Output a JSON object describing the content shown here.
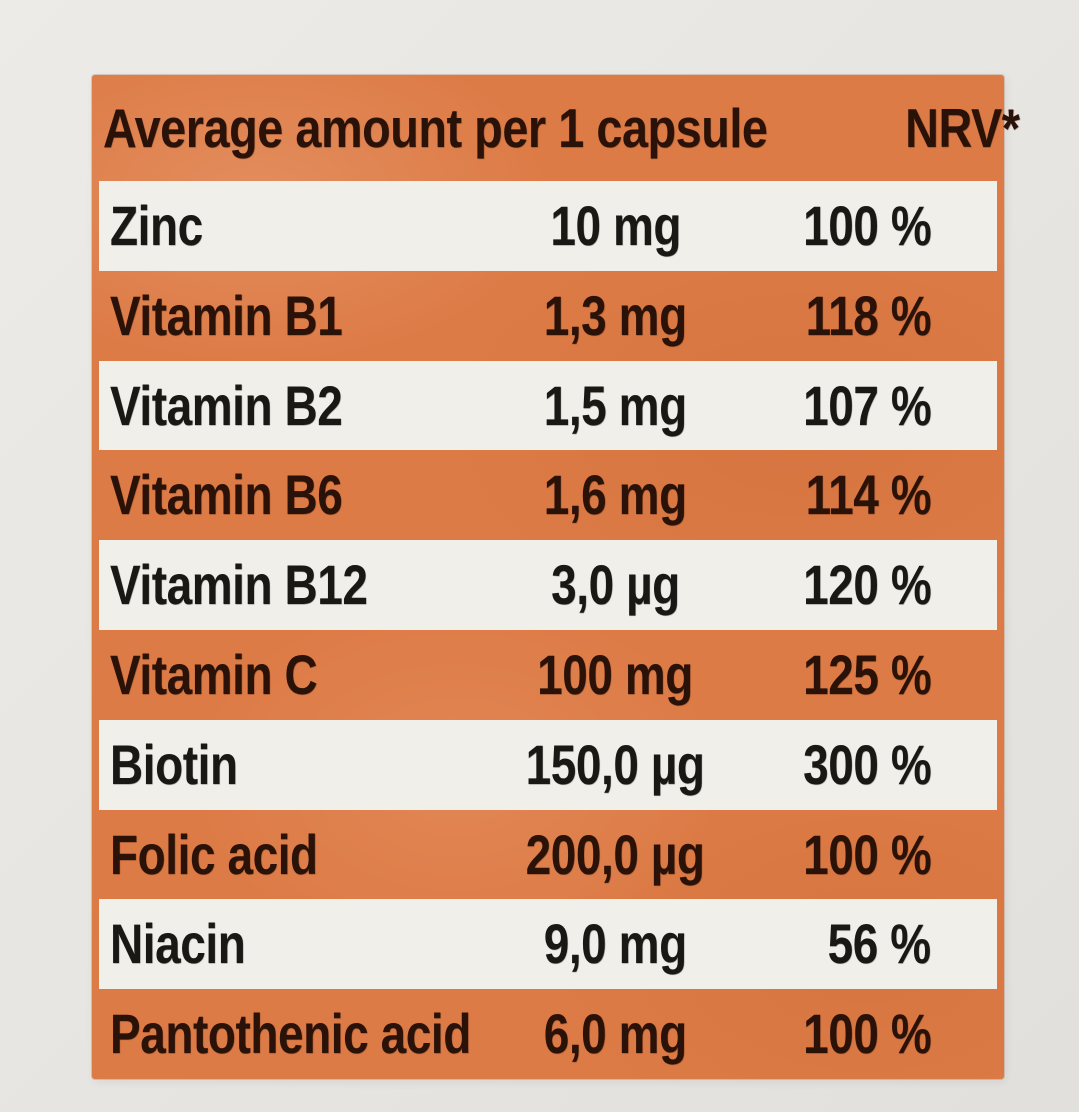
{
  "label": {
    "header": {
      "title": "Average amount per 1 capsule",
      "nrv": "NRV*"
    },
    "rows": [
      {
        "name": "Zinc",
        "amount": "10 mg",
        "nrv": "100 %"
      },
      {
        "name": "Vitamin B1",
        "amount": "1,3 mg",
        "nrv": "118 %"
      },
      {
        "name": "Vitamin B2",
        "amount": "1,5 mg",
        "nrv": "107 %"
      },
      {
        "name": "Vitamin B6",
        "amount": "1,6 mg",
        "nrv": "114 %"
      },
      {
        "name": "Vitamin B12",
        "amount": "3,0 µg",
        "nrv": "120 %"
      },
      {
        "name": "Vitamin C",
        "amount": "100 mg",
        "nrv": "125 %"
      },
      {
        "name": "Biotin",
        "amount": "150,0 µg",
        "nrv": "300 %"
      },
      {
        "name": "Folic acid",
        "amount": "200,0 µg",
        "nrv": "100 %"
      },
      {
        "name": "Niacin",
        "amount": "9,0 mg",
        "nrv": "56 %"
      },
      {
        "name": "Pantothenic acid",
        "amount": "6,0 mg",
        "nrv": "100 %"
      }
    ]
  },
  "colors": {
    "orange": "#dd7b46",
    "row_white": "#f0efe9",
    "background": "#e8e6e2",
    "text_on_orange": "#2a1208",
    "text_on_white": "#1a1815"
  }
}
